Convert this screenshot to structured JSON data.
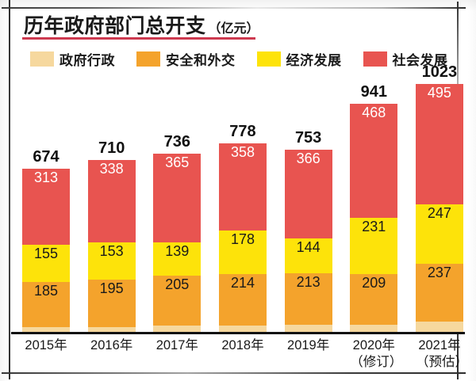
{
  "title": {
    "text": "历年政府部门总开支",
    "unit": "（亿元）"
  },
  "accent_underline_color": "#CE3A50",
  "legend": [
    {
      "key": "govt-admin",
      "label": "政府行政",
      "color": "#F6D89E"
    },
    {
      "key": "security-foreign",
      "label": "安全和外交",
      "color": "#F4A32C"
    },
    {
      "key": "economic-dev",
      "label": "经济发展",
      "color": "#FDE30A"
    },
    {
      "key": "social-dev",
      "label": "社会发展",
      "color": "#E85450"
    }
  ],
  "chart_data": {
    "type": "bar",
    "subtype": "stacked",
    "title": "历年政府部门总开支（亿元）",
    "xlabel": "",
    "ylabel": "亿元",
    "grid": false,
    "legend_position": "top",
    "categories": [
      "2015年",
      "2016年",
      "2017年",
      "2018年",
      "2019年",
      "2020年（修订）",
      "2021年（预估）"
    ],
    "series": [
      {
        "key": "govt-admin",
        "name": "政府行政",
        "color": "#F6D89E",
        "label_color": "#1a1a1a",
        "values": [
          22,
          24,
          28,
          28,
          31,
          33,
          45
        ]
      },
      {
        "key": "security-foreign",
        "name": "安全和外交",
        "color": "#F4A32C",
        "label_color": "#1a1a1a",
        "values": [
          185,
          195,
          205,
          214,
          213,
          209,
          237
        ]
      },
      {
        "key": "economic-dev",
        "name": "经济发展",
        "color": "#FDE30A",
        "label_color": "#1a1a1a",
        "values": [
          155,
          153,
          139,
          178,
          144,
          231,
          247
        ]
      },
      {
        "key": "social-dev",
        "name": "社会发展",
        "color": "#E85450",
        "label_color": "#ffffff",
        "values": [
          313,
          338,
          365,
          358,
          366,
          468,
          495
        ]
      }
    ],
    "totals": [
      674,
      710,
      736,
      778,
      753,
      941,
      1023
    ],
    "ylim": [
      0,
      1075
    ]
  }
}
